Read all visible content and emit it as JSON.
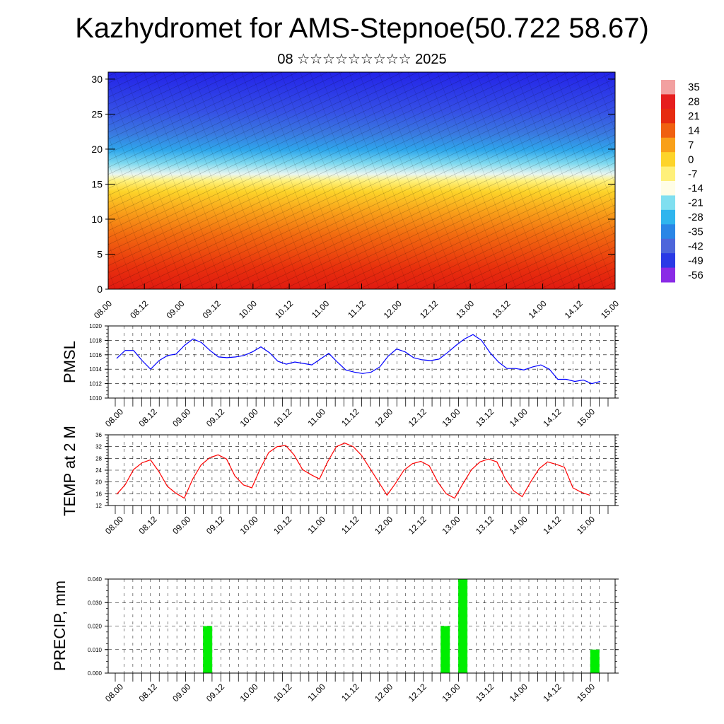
{
  "header": {
    "title": "Kazhydromet for AMS-Stepnoe(50.722 58.67)",
    "subtitle": "08 ☆☆☆☆☆☆☆☆☆ 2025"
  },
  "chart_data": [
    {
      "type": "heatmap",
      "y_ticks": [
        0,
        5,
        10,
        15,
        20,
        25,
        30
      ],
      "ylim": [
        0,
        31
      ],
      "x_ticks": [
        "08.00",
        "08.12",
        "09.00",
        "09.12",
        "10.00",
        "10.12",
        "11.00",
        "11.12",
        "12.00",
        "12.12",
        "13.00",
        "13.12",
        "14.00",
        "14.12",
        "15.00"
      ],
      "colorbar_labels": [
        "35",
        "28",
        "21",
        "14",
        "7",
        "0",
        "-7",
        "-14",
        "-21",
        "-28",
        "-35",
        "-42",
        "-49",
        "-56"
      ],
      "colorbar_range": [
        -60,
        38
      ],
      "colors": {
        "35": "#f2a0a0",
        "28": "#e61e1e",
        "21": "#e62b10",
        "14": "#f06010",
        "7": "#f9a019",
        "0": "#fdd42a",
        "-7": "#fff07a",
        "-14": "#fffde6",
        "-21": "#80dff0",
        "-28": "#2fb5ee",
        "-35": "#2a86e6",
        "-42": "#4d66db",
        "-49": "#2a3ae6",
        "-56": "#8a2be6"
      }
    },
    {
      "type": "line",
      "ylabel": "PMSL",
      "ylim": [
        1010,
        1020
      ],
      "y_ticks": [
        "1010",
        "1012",
        "1014",
        "1016",
        "1018",
        "1020"
      ],
      "x_ticks": [
        "08.00",
        "08.12",
        "09.00",
        "09.12",
        "10.00",
        "10.12",
        "11.00",
        "11.12",
        "12.00",
        "12.12",
        "13.00",
        "13.12",
        "14.00",
        "14.12",
        "15.00"
      ],
      "series_color": "#0000ff",
      "values": [
        1015.5,
        1016.6,
        1016.6,
        1015.2,
        1014.0,
        1015.2,
        1015.9,
        1016.1,
        1017.3,
        1018.2,
        1017.7,
        1016.6,
        1015.7,
        1015.6,
        1015.7,
        1015.9,
        1016.4,
        1017.1,
        1016.3,
        1015.1,
        1014.7,
        1015.0,
        1014.8,
        1014.6,
        1015.4,
        1016.2,
        1015.0,
        1013.9,
        1013.6,
        1013.4,
        1013.6,
        1014.3,
        1015.8,
        1016.8,
        1016.4,
        1015.6,
        1015.3,
        1015.2,
        1015.4,
        1016.3,
        1017.3,
        1018.2,
        1018.8,
        1018.0,
        1016.3,
        1015.0,
        1014.1,
        1014.1,
        1013.9,
        1014.3,
        1014.6,
        1014.0,
        1012.6,
        1012.6,
        1012.3,
        1012.5,
        1012.0,
        1012.3
      ]
    },
    {
      "type": "line",
      "ylabel": "TEMP at 2 M",
      "ylim": [
        12,
        36
      ],
      "y_ticks": [
        "12",
        "16",
        "20",
        "24",
        "28",
        "32",
        "36"
      ],
      "x_ticks": [
        "08.00",
        "08.12",
        "09.00",
        "09.12",
        "10.00",
        "10.12",
        "11.00",
        "11.12",
        "12.00",
        "12.12",
        "13.00",
        "13.12",
        "14.00",
        "14.12",
        "15.00"
      ],
      "series_color": "#ff0000",
      "values": [
        15.8,
        19.0,
        24.2,
        26.5,
        27.5,
        23.5,
        18.5,
        16.2,
        14.5,
        21.0,
        25.8,
        28.2,
        29.2,
        27.8,
        22.0,
        19.0,
        18.0,
        24.5,
        30.0,
        32.0,
        32.4,
        29.2,
        24.2,
        22.5,
        21.0,
        27.0,
        32.0,
        33.2,
        32.0,
        29.0,
        24.5,
        20.0,
        15.5,
        19.5,
        24.0,
        26.2,
        27.0,
        25.5,
        20.0,
        16.0,
        14.5,
        19.5,
        24.2,
        26.8,
        27.8,
        26.8,
        21.0,
        17.0,
        15.0,
        20.0,
        24.5,
        26.8,
        26.0,
        25.0,
        18.0,
        16.5,
        15.5
      ]
    },
    {
      "type": "bar",
      "ylabel": "PRECIP, mm",
      "ylim": [
        0,
        0.04
      ],
      "y_ticks": [
        "0.000",
        "0.010",
        "0.020",
        "0.030",
        "0.040"
      ],
      "x_ticks": [
        "08.00",
        "08.12",
        "09.00",
        "09.12",
        "10.00",
        "10.12",
        "11.00",
        "11.12",
        "12.00",
        "12.12",
        "13.00",
        "13.12",
        "14.00",
        "14.12",
        "15.00"
      ],
      "series_color": "#00ee00",
      "bars": [
        {
          "t": 10.5,
          "value": 0.02
        },
        {
          "t": 37.5,
          "value": 0.02
        },
        {
          "t": 39.5,
          "value": 0.04
        },
        {
          "t": 54.5,
          "value": 0.01
        }
      ]
    }
  ]
}
